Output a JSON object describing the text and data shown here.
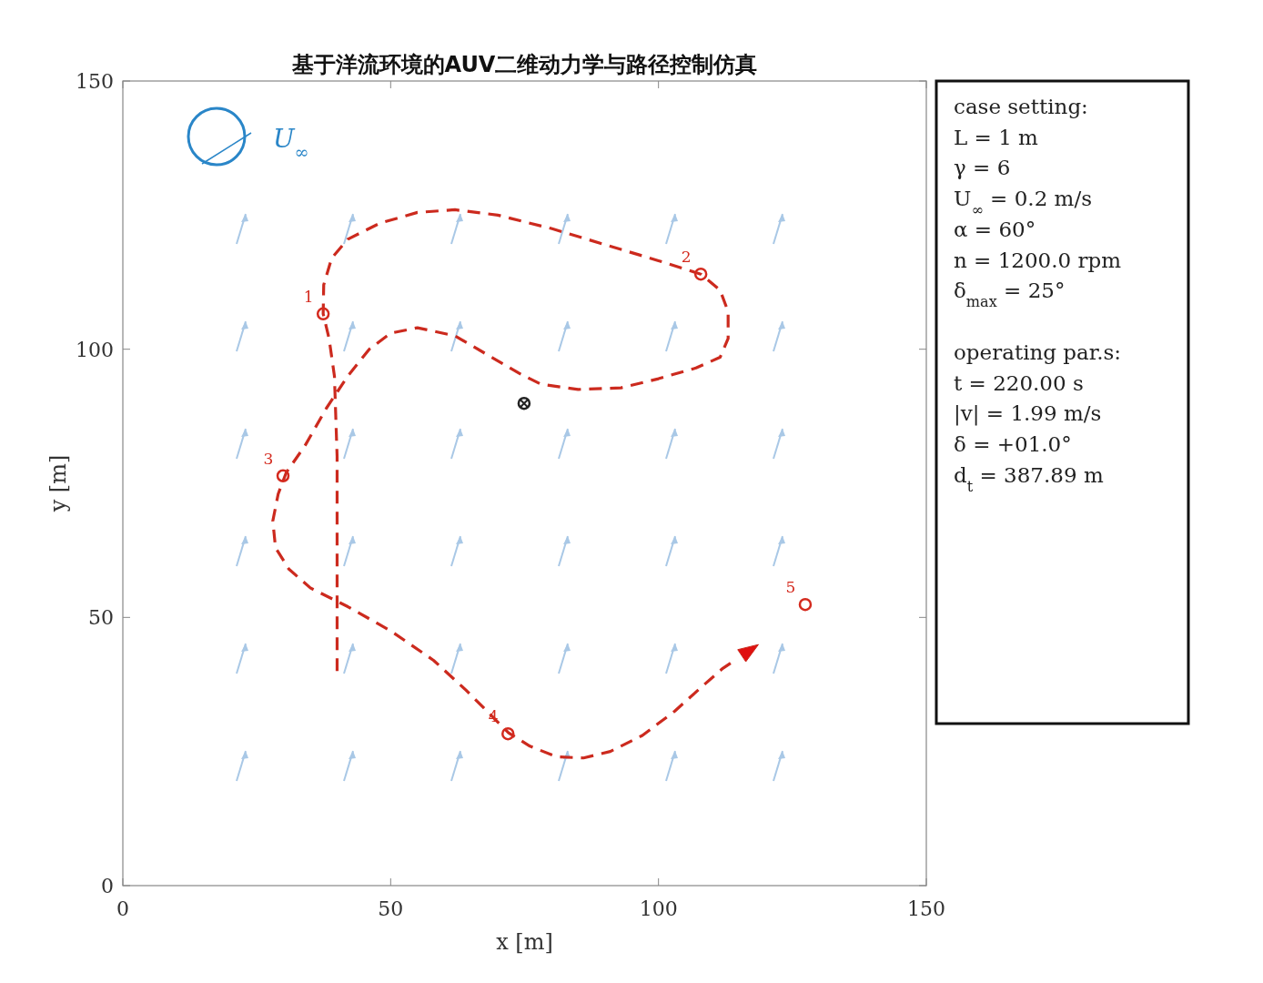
{
  "chart_data": {
    "type": "line",
    "title": "基于洋流环境的AUV二维动力学与路径控制仿真",
    "xlabel": "x [m]",
    "ylabel": "y [m]",
    "xlim": [
      0,
      150
    ],
    "ylim": [
      0,
      150
    ],
    "xticks": [
      0,
      50,
      100,
      150
    ],
    "yticks": [
      0,
      50,
      100,
      150
    ],
    "annotations": [
      "U$_{∞}$",
      "case setting:",
      "L = 1 m",
      "γ = 6",
      "U$_{∞}$ = 0.2 m/s",
      "α = 60°",
      "n = 1200.0 rpm",
      "δ$_{max}$ = 25°",
      "operating par.s:",
      "t = 220.00 s",
      "|v| = 1.99 m/s",
      "δ = +01.0°",
      "d$_{t}$ = 387.89 m",
      {
        "text": "1",
        "x": 37.4,
        "y": 106.6
      },
      {
        "text": "2",
        "x": 107.9,
        "y": 114
      },
      {
        "text": "3",
        "x": 29.9,
        "y": 76.4
      },
      {
        "text": "4",
        "x": 71.9,
        "y": 28.3
      },
      {
        "text": "5",
        "x": 127.4,
        "y": 52.4
      }
    ],
    "series": [
      {
        "type": "line",
        "color": "#cc2a1e",
        "line_style": "dashed",
        "marker": "none",
        "x": [
          40,
          40,
          40,
          39.5,
          38.5,
          37.4,
          37.5,
          39,
          42,
          48,
          55,
          62,
          70,
          80,
          90,
          100,
          107.9,
          111.5,
          113,
          113,
          111.5,
          107,
          100,
          93,
          85,
          78,
          74,
          68,
          62,
          55,
          50,
          46,
          42,
          38,
          34,
          30.5,
          29,
          28,
          28.5,
          31,
          35,
          42,
          50,
          58,
          64,
          69,
          72,
          76,
          81,
          86,
          91,
          97,
          103,
          108,
          112,
          114.7
        ],
        "values": [
          40,
          60,
          80,
          95,
          102,
          106.6,
          112,
          117,
          120.5,
          123.5,
          125.5,
          126,
          125,
          122.5,
          119.5,
          116.5,
          114,
          111,
          107,
          102,
          98.5,
          96.5,
          94.5,
          92.8,
          92.5,
          93.5,
          95.5,
          99,
          102.5,
          104,
          103,
          100,
          95,
          89,
          82,
          77,
          73,
          68,
          63,
          59,
          55.5,
          52,
          47.5,
          42,
          36.5,
          31.5,
          28.5,
          26,
          24,
          23.8,
          25,
          28,
          32.5,
          37,
          40.5,
          42.3
        ]
      },
      {
        "type": "scatter",
        "color": "#d42a1e",
        "marker": "circle",
        "x": [
          37.4,
          107.9,
          29.9,
          71.9,
          127.4
        ],
        "values": [
          106.6,
          114,
          76.4,
          28.3,
          52.4
        ]
      },
      {
        "type": "scatter",
        "color": "#222222",
        "marker": "circle",
        "x": [
          74.9
        ],
        "values": [
          89.9
        ]
      }
    ]
  }
}
